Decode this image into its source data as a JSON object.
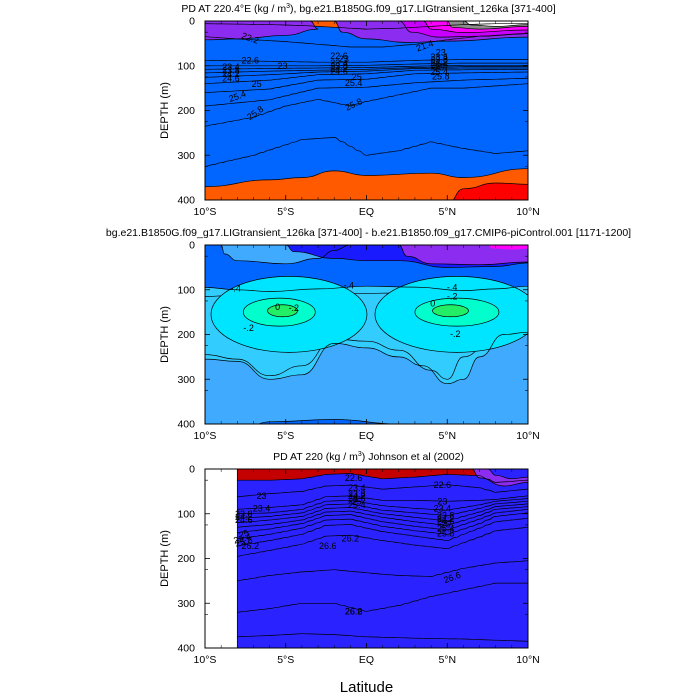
{
  "chart_data": [
    {
      "type": "contour",
      "title_prefix": "PD AT 220.4°E (kg / m",
      "title_unit_sup": "3",
      "title_suffix": "), bg.e21.B1850G.f09_g17.LIGtransient_126ka [371-400]",
      "ylabel": "DEPTH (m)",
      "xlim": [
        -10,
        10
      ],
      "ylim": [
        0,
        400
      ],
      "yticks": [
        "0",
        "100",
        "200",
        "300",
        "400"
      ],
      "xticks": [
        "10°S",
        "5°S",
        "EQ",
        "5°N",
        "10°N"
      ],
      "contour_labels": [
        "22.2",
        "21.4",
        "22.6",
        "23",
        "23.4",
        "23.8",
        "24.2",
        "24.6",
        "25",
        "25.4",
        "25.8",
        "22.6",
        "23",
        "23.4",
        "23.8",
        "24.2",
        "24.6",
        "25",
        "25.4",
        "25.8",
        "23",
        "23.4",
        "23.8",
        "24.2",
        "24.6",
        "25",
        "25.4",
        "25.8"
      ],
      "colors": [
        "#ffffff",
        "#8c8c8c",
        "#ff00ff",
        "#c800ff",
        "#8c2cf0",
        "#2a23ff",
        "#0066ff",
        "#00bfff",
        "#00eedd",
        "#00dd66",
        "#44ee00",
        "#ccf000",
        "#ffe600",
        "#ffaa00",
        "#f58c0a",
        "#ff5a00",
        "#ff0000"
      ]
    },
    {
      "type": "contour",
      "title": "bg.e21.B1850G.f09_g17.LIGtransient_126ka [371-400] - b.e21.B1850.f09_g17.CMIP6-piControl.001 [1171-1200]",
      "ylabel": "DEPTH (m)",
      "xlim": [
        -10,
        10
      ],
      "ylim": [
        0,
        400
      ],
      "yticks": [
        "0",
        "100",
        "200",
        "300",
        "400"
      ],
      "xticks": [
        "10°S",
        "5°S",
        "EQ",
        "5°N",
        "10°N"
      ],
      "contour_labels": [
        "-.4",
        "-.4",
        "-.2",
        "0",
        "-.2",
        "-.4",
        "-.2",
        "0",
        "-.2"
      ],
      "colors": [
        "#ff00ff",
        "#8c2cf0",
        "#1a1aff",
        "#0066ff",
        "#40aaff",
        "#33ccff",
        "#00e5ff",
        "#00ffcc",
        "#22ee66"
      ]
    },
    {
      "type": "contour",
      "title_prefix": "PD AT 220 (kg / m",
      "title_unit_sup": "3",
      "title_suffix": ") Johnson et al (2002)",
      "ylabel": "DEPTH (m)",
      "xlabel": "Latitude",
      "xlim": [
        -10,
        10
      ],
      "ylim": [
        0,
        400
      ],
      "data_xlim": [
        -8,
        10
      ],
      "yticks": [
        "0",
        "100",
        "200",
        "300",
        "400"
      ],
      "xticks": [
        "10°S",
        "5°S",
        "EQ",
        "5°N",
        "10°N"
      ],
      "contour_labels": [
        "22.6",
        "23",
        "23.4",
        "23.8",
        "24.2",
        "24.6",
        "25",
        "25.4",
        "25.8",
        "26.2",
        "26.6",
        "23.4",
        "23.8",
        "24.2",
        "24.6",
        "25",
        "25.4",
        "26.2",
        "26.6",
        "22.6",
        "23",
        "23.4",
        "23.8",
        "24.2",
        "24.6",
        "25",
        "25.4",
        "25.8",
        "26.2",
        "26.6"
      ],
      "colors": [
        "#8c2cf0",
        "#2a23ff",
        "#0066ff",
        "#00bfff",
        "#00eedd",
        "#00dd66",
        "#44ee00",
        "#ccf000",
        "#ffe600",
        "#ffaa00",
        "#ff5a00",
        "#ff0000",
        "#dd0000",
        "#c40000"
      ]
    }
  ]
}
